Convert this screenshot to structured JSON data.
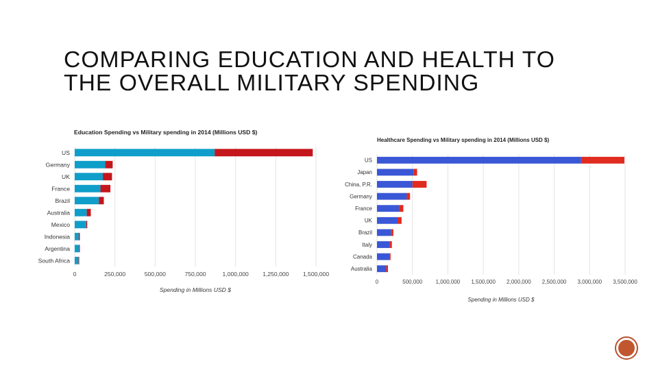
{
  "slide": {
    "title": "COMPARING EDUCATION AND HEALTH TO THE OVERALL MILITARY SPENDING"
  },
  "colors": {
    "education": "#0f9ec9",
    "military_left": "#c4161c",
    "healthcare": "#3a57d6",
    "military_right": "#e12b1e",
    "badge": "#c0572f"
  },
  "chart_data": [
    {
      "type": "bar",
      "orientation": "horizontal",
      "stacked": true,
      "title": "Education Spending vs Military spending in 2014 (Millions USD $)",
      "xlabel": "Spending in Millions USD $",
      "ylabel": "",
      "xlim": [
        0,
        1500000
      ],
      "xticks": [
        0,
        250000,
        500000,
        750000,
        1000000,
        1250000,
        1500000
      ],
      "xtick_labels": [
        "0",
        "250,000",
        "500,000",
        "750,000",
        "1,000,000",
        "1,250,000",
        "1,500,000"
      ],
      "grid": true,
      "categories": [
        "US",
        "Germany",
        "UK",
        "France",
        "Brazil",
        "Australia",
        "Mexico",
        "Indonesia",
        "Argentina",
        "South Africa"
      ],
      "series": [
        {
          "name": "Education",
          "values": [
            870000,
            190000,
            175000,
            160000,
            150000,
            75000,
            72000,
            25000,
            27000,
            24000
          ]
        },
        {
          "name": "Military",
          "values": [
            610000,
            46000,
            57000,
            62000,
            31000,
            25000,
            6000,
            7000,
            5000,
            4000
          ]
        }
      ]
    },
    {
      "type": "bar",
      "orientation": "horizontal",
      "stacked": true,
      "title": "Healthcare Spending vs Military spending in 2014 (Millions USD $)",
      "xlabel": "Spending in Millions USD $",
      "ylabel": "",
      "xlim": [
        0,
        3500000
      ],
      "xticks": [
        0,
        500000,
        1000000,
        1500000,
        2000000,
        2500000,
        3000000,
        3500000
      ],
      "xtick_labels": [
        "0",
        "500,000",
        "1,000,000",
        "1,500,000",
        "2,000,000",
        "2,500,000",
        "3,000,000",
        "3,500,000"
      ],
      "grid": true,
      "categories": [
        "US",
        "Japan",
        "China, P.R.",
        "Germany",
        "France",
        "UK",
        "Brazil",
        "Italy",
        "Canada",
        "Australia"
      ],
      "series": [
        {
          "name": "Healthcare",
          "values": [
            2880000,
            520000,
            500000,
            420000,
            310000,
            290000,
            200000,
            180000,
            175000,
            130000
          ]
        },
        {
          "name": "Military",
          "values": [
            610000,
            46000,
            200000,
            46000,
            62000,
            57000,
            31000,
            30000,
            17000,
            25000
          ]
        }
      ]
    }
  ]
}
